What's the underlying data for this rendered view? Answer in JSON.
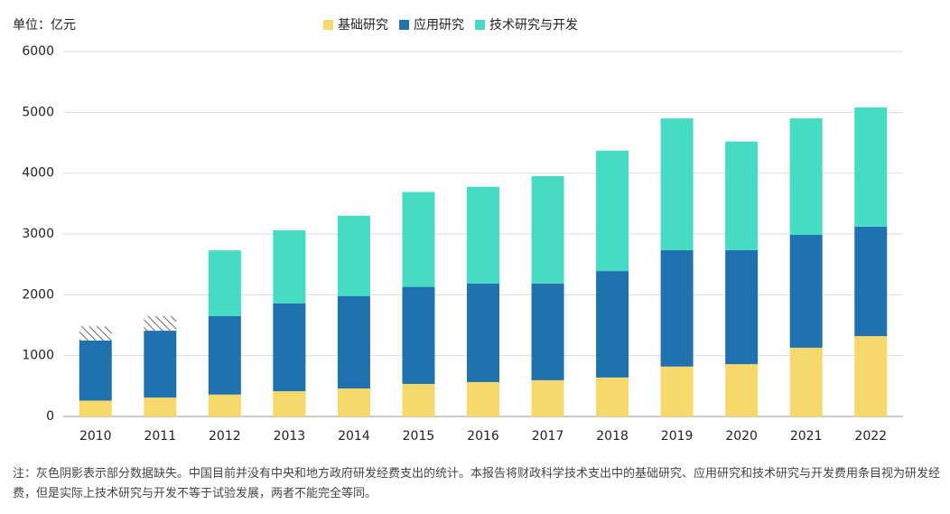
{
  "chart_data": {
    "type": "stacked-bar",
    "unit": "单位：亿元",
    "categories": [
      "2010",
      "2011",
      "2012",
      "2013",
      "2014",
      "2015",
      "2016",
      "2017",
      "2018",
      "2019",
      "2020",
      "2021",
      "2022"
    ],
    "series": [
      {
        "name": "基础研究",
        "color": "#f7d86b",
        "values": [
          260,
          310,
          360,
          415,
          460,
          535,
          565,
          595,
          640,
          820,
          860,
          1130,
          1320
        ]
      },
      {
        "name": "应用研究",
        "color": "#1f72ad",
        "values": [
          990,
          1100,
          1290,
          1445,
          1520,
          1595,
          1620,
          1590,
          1750,
          1915,
          1875,
          1855,
          1800
        ]
      },
      {
        "name": "技术研究与开发",
        "color": "#45dcc3",
        "values": [
          null,
          null,
          1080,
          1200,
          1320,
          1560,
          1590,
          1765,
          1980,
          2165,
          1785,
          1915,
          1960
        ]
      }
    ],
    "shaded_values": [
      230,
      240,
      null,
      null,
      null,
      null,
      null,
      null,
      null,
      null,
      null,
      null,
      null
    ],
    "ylim": [
      0,
      6000
    ],
    "yticks": [
      0,
      1000,
      2000,
      3000,
      4000,
      5000,
      6000
    ],
    "grid": true,
    "note": "注：灰色阴影表示部分数据缺失。中国目前并没有中央和地方政府研发经费支出的统计。本报告将财政科学技术支出中的基础研究、应用研究和技术研究与开发费用条目视为研发经费，但是实际上技术研究与开发不等于试验发展，两者不能完全等同。"
  }
}
